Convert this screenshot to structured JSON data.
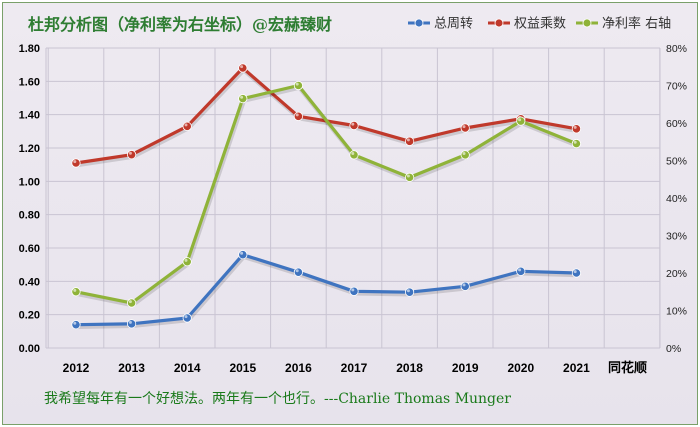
{
  "chart_data": {
    "type": "line",
    "title": "杜邦分析图（净利率为右坐标）@宏赫臻财",
    "x": [
      "2012",
      "2013",
      "2014",
      "2015",
      "2016",
      "2017",
      "2018",
      "2019",
      "2020",
      "2021"
    ],
    "series": [
      {
        "name": "总周转",
        "axis": "left",
        "color": "#3f74c0",
        "values": [
          0.14,
          0.145,
          0.18,
          0.56,
          0.455,
          0.34,
          0.335,
          0.37,
          0.46,
          0.45
        ]
      },
      {
        "name": "权益乘数",
        "axis": "left",
        "color": "#c0392b",
        "values": [
          1.11,
          1.16,
          1.33,
          1.68,
          1.39,
          1.335,
          1.24,
          1.32,
          1.375,
          1.315
        ]
      },
      {
        "name": "净利率 右轴",
        "axis": "right",
        "color": "#8fb339",
        "values": [
          0.15,
          0.12,
          0.23,
          0.665,
          0.7,
          0.515,
          0.455,
          0.515,
          0.605,
          0.545
        ]
      }
    ],
    "y_left": {
      "ylim": [
        0,
        1.8
      ],
      "ticks": [
        "0.00",
        "0.20",
        "0.40",
        "0.60",
        "0.80",
        "1.00",
        "1.20",
        "1.40",
        "1.60",
        "1.80"
      ]
    },
    "y_right": {
      "ylim": [
        0,
        0.8
      ],
      "ticks": [
        "0%",
        "10%",
        "20%",
        "30%",
        "40%",
        "50%",
        "60%",
        "70%",
        "80%"
      ]
    },
    "grid": true,
    "legend_position": "top-right",
    "watermark": "同花顺",
    "footer_quote": "我希望每年有一个好想法。两年有一个也行。---Charlie  Thomas Munger"
  }
}
